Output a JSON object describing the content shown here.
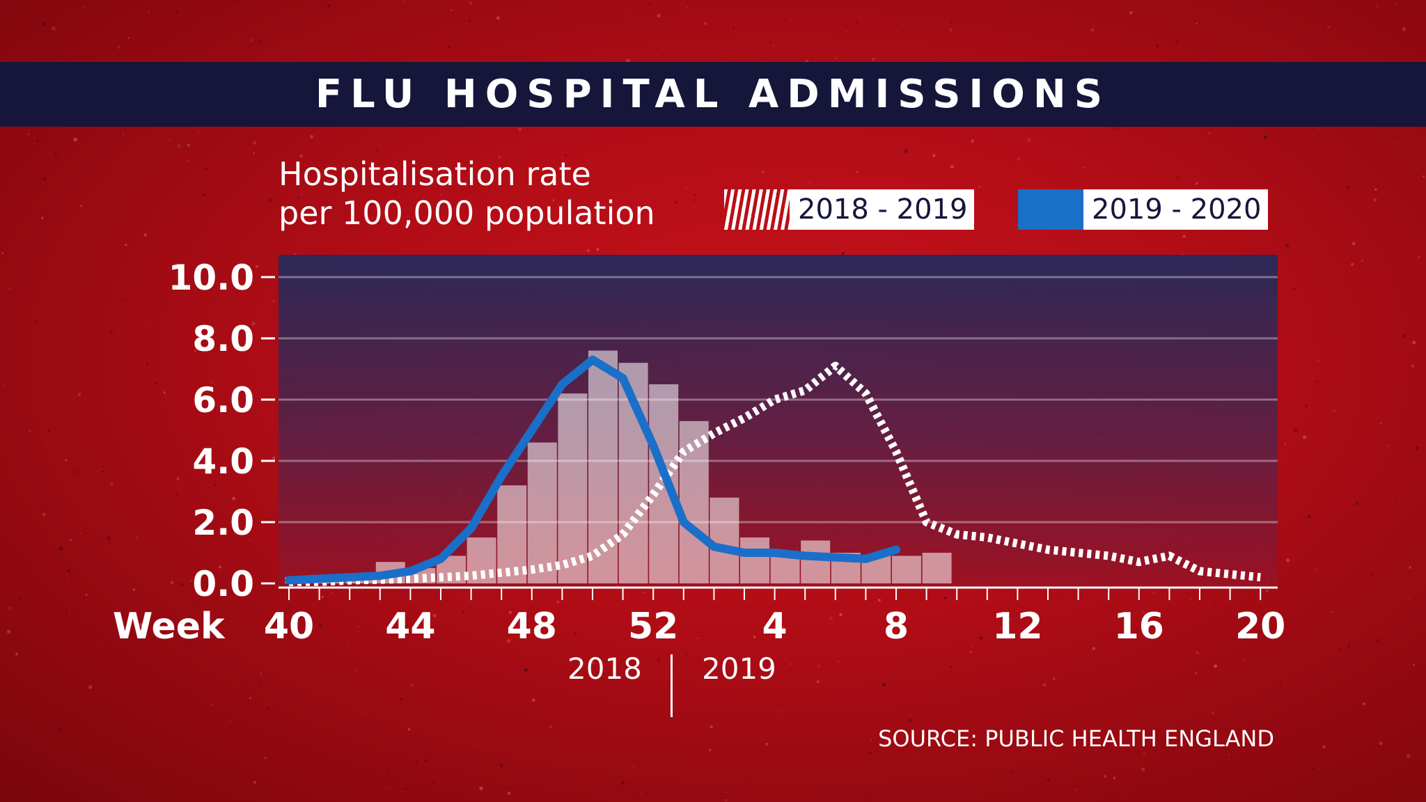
{
  "title": "FLU HOSPITAL ADMISSIONS",
  "ylabel_line1": "Hospitalisation rate",
  "ylabel_line2": "per 100,000 population",
  "legend": {
    "series1": "2018 - 2019",
    "series2": "2019 - 2020"
  },
  "x_axis_word": "Week",
  "year_left": "2018",
  "year_right": "2019",
  "source": "SOURCE: PUBLIC HEALTH ENGLAND",
  "colors": {
    "background": "#b20d16",
    "title_bar": "#15163a",
    "blue_series": "#1a6fc9",
    "hatch_series": "#ffffff"
  },
  "chart_data": {
    "type": "line",
    "xlabel": "Week",
    "ylim": [
      0,
      10
    ],
    "y_ticks": [
      "0.0",
      "2.0",
      "4.0",
      "6.0",
      "8.0",
      "10.0"
    ],
    "x_ticks": [
      "40",
      "44",
      "48",
      "52",
      "4",
      "8",
      "12",
      "16",
      "20"
    ],
    "weeks": [
      "40",
      "41",
      "42",
      "43",
      "44",
      "45",
      "46",
      "47",
      "48",
      "49",
      "50",
      "51",
      "52",
      "1",
      "2",
      "3",
      "4",
      "5",
      "6",
      "7",
      "8",
      "9",
      "10",
      "11",
      "12",
      "13",
      "14",
      "15",
      "16",
      "17",
      "18",
      "19",
      "20"
    ],
    "series": [
      {
        "name": "2018 - 2019",
        "style": "hatched-line",
        "values": [
          0.05,
          0.05,
          0.1,
          0.12,
          0.15,
          0.2,
          0.25,
          0.35,
          0.45,
          0.6,
          0.9,
          1.6,
          2.9,
          4.3,
          4.9,
          5.4,
          6.0,
          6.3,
          7.1,
          6.2,
          4.3,
          2.0,
          1.6,
          1.5,
          1.3,
          1.1,
          1.0,
          0.9,
          0.7,
          0.9,
          0.4,
          0.3,
          0.2
        ]
      },
      {
        "name": "2019 - 2020",
        "style": "line",
        "values": [
          0.1,
          0.15,
          0.2,
          0.25,
          0.4,
          0.8,
          1.8,
          3.5,
          5.0,
          6.5,
          7.3,
          6.7,
          4.5,
          2.0,
          1.2,
          1.0,
          1.0,
          0.9,
          0.85,
          0.8,
          1.1
        ]
      },
      {
        "name": "2019 - 2020 bars",
        "style": "bars",
        "values": [
          0.2,
          0.2,
          0.3,
          0.7,
          0.5,
          0.9,
          1.5,
          3.2,
          4.6,
          6.2,
          7.6,
          7.2,
          6.5,
          5.3,
          2.8,
          1.5,
          1.0,
          1.4,
          1.0,
          0.9,
          0.9,
          1.0
        ]
      }
    ]
  }
}
